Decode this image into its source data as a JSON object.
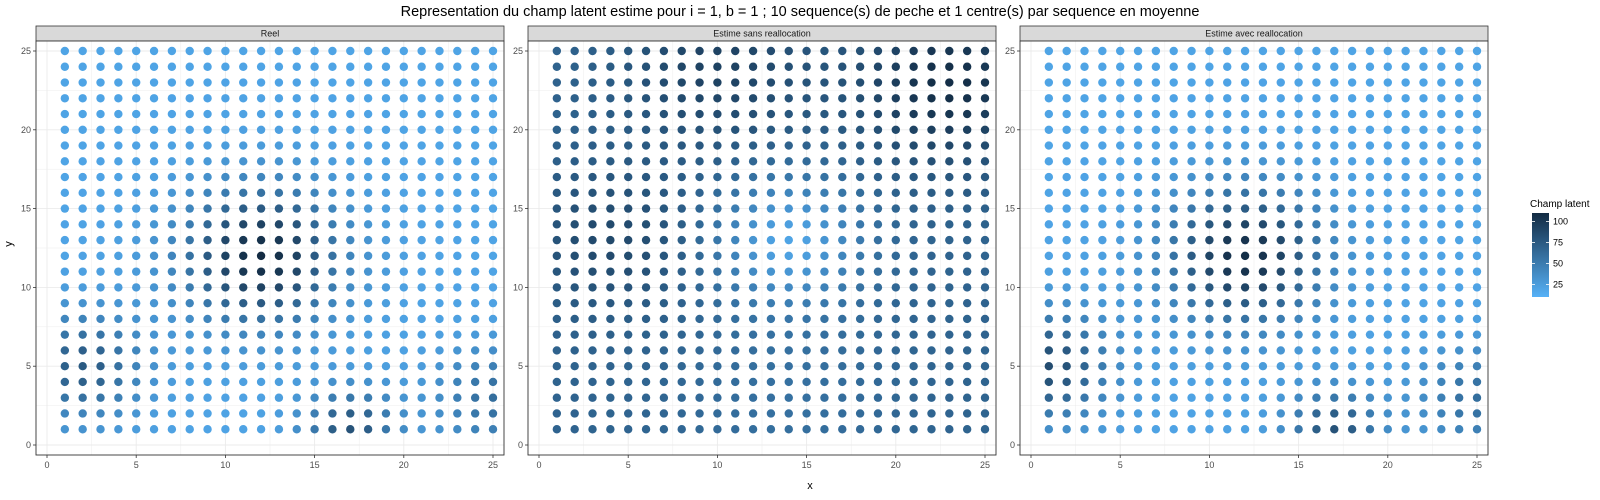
{
  "figure": {
    "title": "Representation du champ latent estime pour i = 1, b = 1 ; 10 sequence(s) de peche et 1 centre(s) par sequence en moyenne",
    "xlabel": "x",
    "ylabel": "y"
  },
  "legend": {
    "title": "Champ latent",
    "ticks": [
      25,
      50,
      75,
      100
    ],
    "low_color": "#56B1F7",
    "high_color": "#132B43"
  },
  "chart_data": [
    {
      "type": "scatter",
      "panel": "Reel",
      "xlim": [
        0,
        25
      ],
      "ylim": [
        0,
        25
      ],
      "xticks": [
        0,
        5,
        10,
        15,
        20,
        25
      ],
      "yticks": [
        0,
        5,
        10,
        15,
        20,
        25
      ],
      "grid": true,
      "grid_range": [
        1,
        25
      ],
      "value_range": [
        10,
        110
      ],
      "field_model": {
        "base": 20,
        "hotspots": [
          {
            "x": 12,
            "y": 12,
            "amplitude": 90,
            "sigma": 3.0
          },
          {
            "x": 2,
            "y": 5,
            "amplitude": 55,
            "sigma": 2.3
          },
          {
            "x": 17,
            "y": 1,
            "amplitude": 60,
            "sigma": 1.8
          },
          {
            "x": 25,
            "y": 3,
            "amplitude": 40,
            "sigma": 2.2
          }
        ]
      }
    },
    {
      "type": "scatter",
      "panel": "Estime sans reallocation",
      "xlim": [
        0,
        25
      ],
      "ylim": [
        0,
        25
      ],
      "xticks": [
        0,
        5,
        10,
        15,
        20,
        25
      ],
      "yticks": [
        0,
        5,
        10,
        15,
        20,
        25
      ],
      "grid": true,
      "grid_range": [
        1,
        25
      ],
      "value_range": [
        10,
        110
      ],
      "field_model": {
        "base": 68,
        "hotspots": [
          {
            "x": 23,
            "y": 23,
            "amplitude": 40,
            "sigma": 3.5
          },
          {
            "x": 10,
            "y": 24,
            "amplitude": 25,
            "sigma": 3.5
          },
          {
            "x": 4,
            "y": 13,
            "amplitude": 20,
            "sigma": 3.0
          },
          {
            "x": 14,
            "y": 13,
            "amplitude": -48,
            "sigma": 2.8
          },
          {
            "x": 14,
            "y": 3,
            "amplitude": -10,
            "sigma": 4.0
          }
        ]
      }
    },
    {
      "type": "scatter",
      "panel": "Estime avec reallocation",
      "xlim": [
        0,
        25
      ],
      "ylim": [
        0,
        25
      ],
      "xticks": [
        0,
        5,
        10,
        15,
        20,
        25
      ],
      "yticks": [
        0,
        5,
        10,
        15,
        20,
        25
      ],
      "grid": true,
      "grid_range": [
        1,
        25
      ],
      "value_range": [
        10,
        110
      ],
      "field_model": {
        "base": 20,
        "hotspots": [
          {
            "x": 12,
            "y": 12,
            "amplitude": 88,
            "sigma": 3.0
          },
          {
            "x": 1,
            "y": 5,
            "amplitude": 65,
            "sigma": 2.4
          },
          {
            "x": 17,
            "y": 1,
            "amplitude": 60,
            "sigma": 1.8
          },
          {
            "x": 25,
            "y": 3,
            "amplitude": 40,
            "sigma": 2.2
          }
        ]
      }
    }
  ]
}
